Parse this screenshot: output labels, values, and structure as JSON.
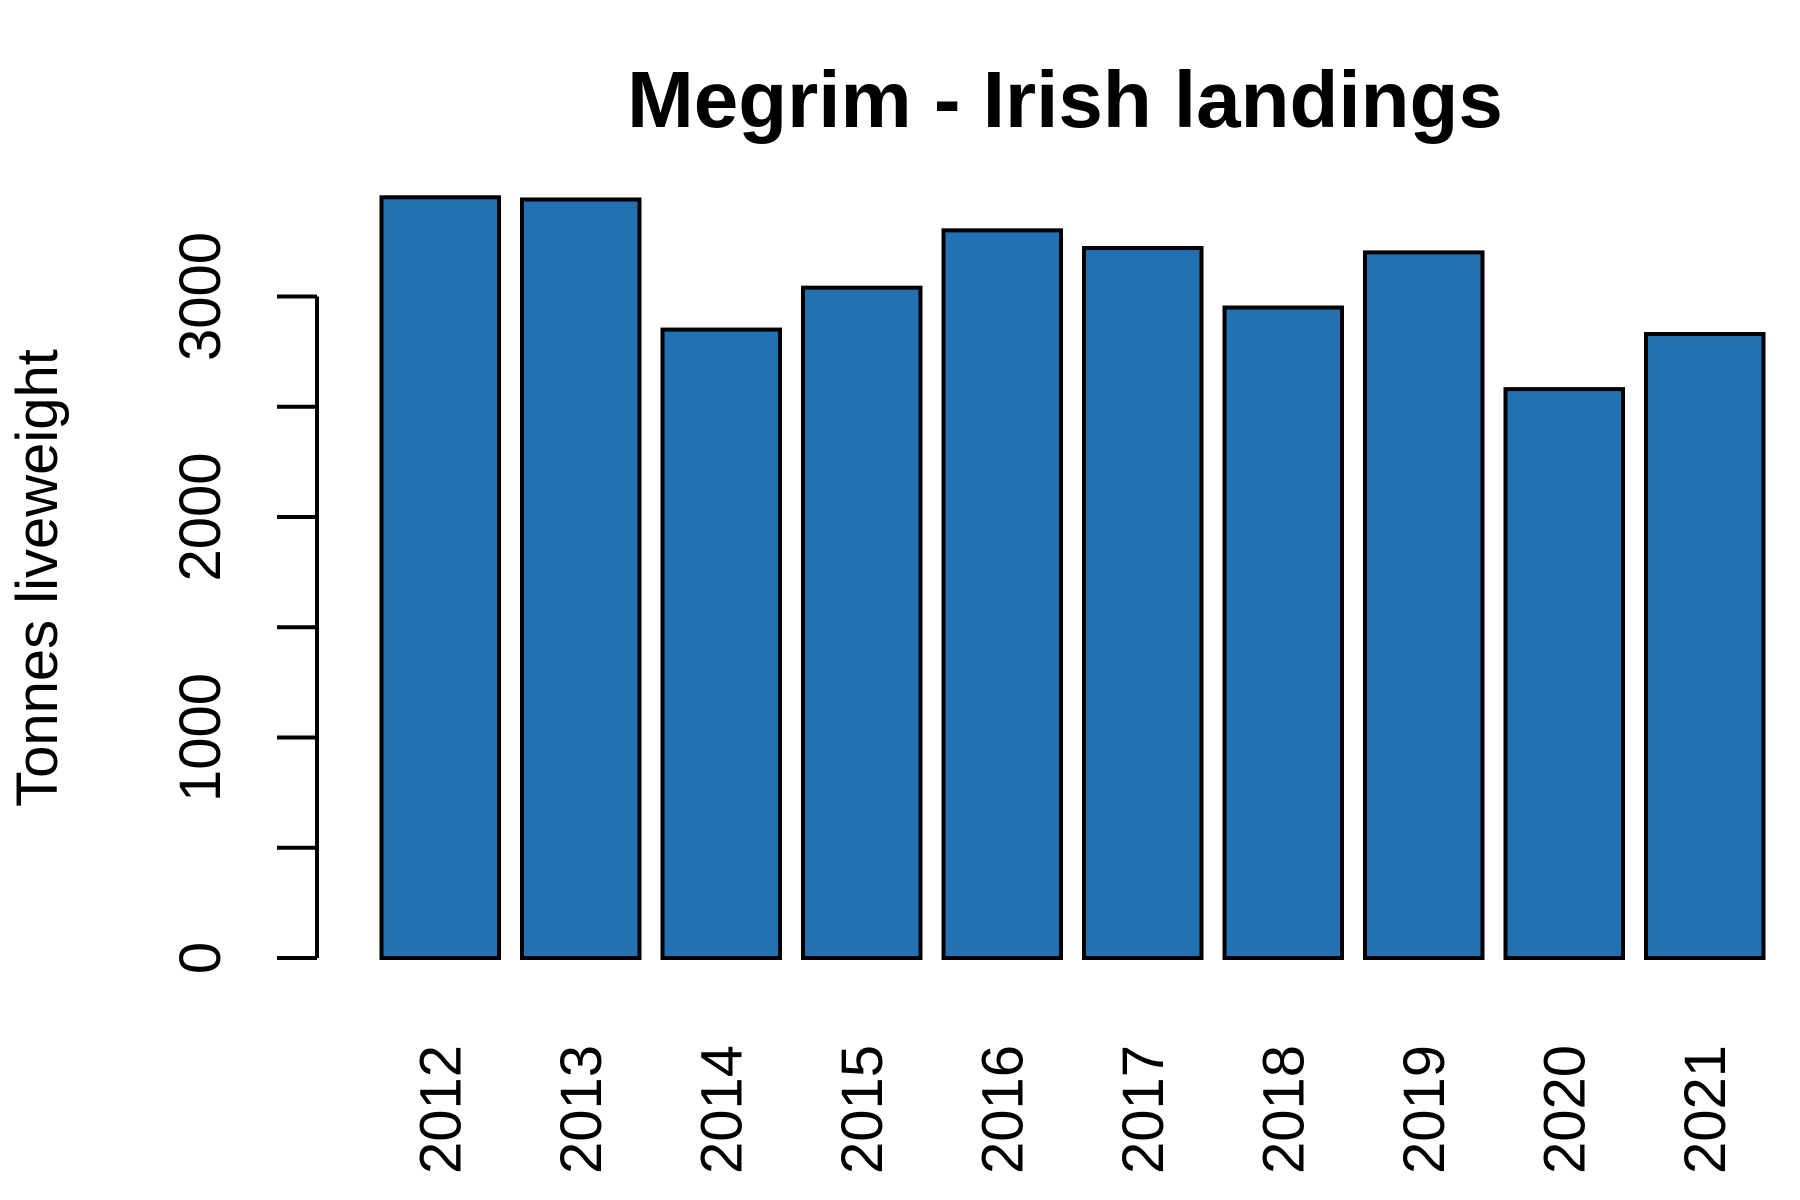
{
  "chart_data": {
    "type": "bar",
    "title": "Megrim - Irish landings",
    "xlabel": "",
    "ylabel": "Tonnes liveweight",
    "categories": [
      "2012",
      "2013",
      "2014",
      "2015",
      "2016",
      "2017",
      "2018",
      "2019",
      "2020",
      "2021"
    ],
    "values": [
      3450,
      3440,
      2850,
      3040,
      3300,
      3220,
      2950,
      3200,
      2580,
      2830
    ],
    "ylim": [
      0,
      3500
    ],
    "y_ticks": [
      0,
      500,
      1000,
      1500,
      2000,
      2500,
      3000
    ],
    "y_tick_labels": [
      "0",
      "",
      "1000",
      "",
      "2000",
      "",
      "3000"
    ],
    "bar_color": "#2271B3",
    "grid": false,
    "legend": "none"
  }
}
